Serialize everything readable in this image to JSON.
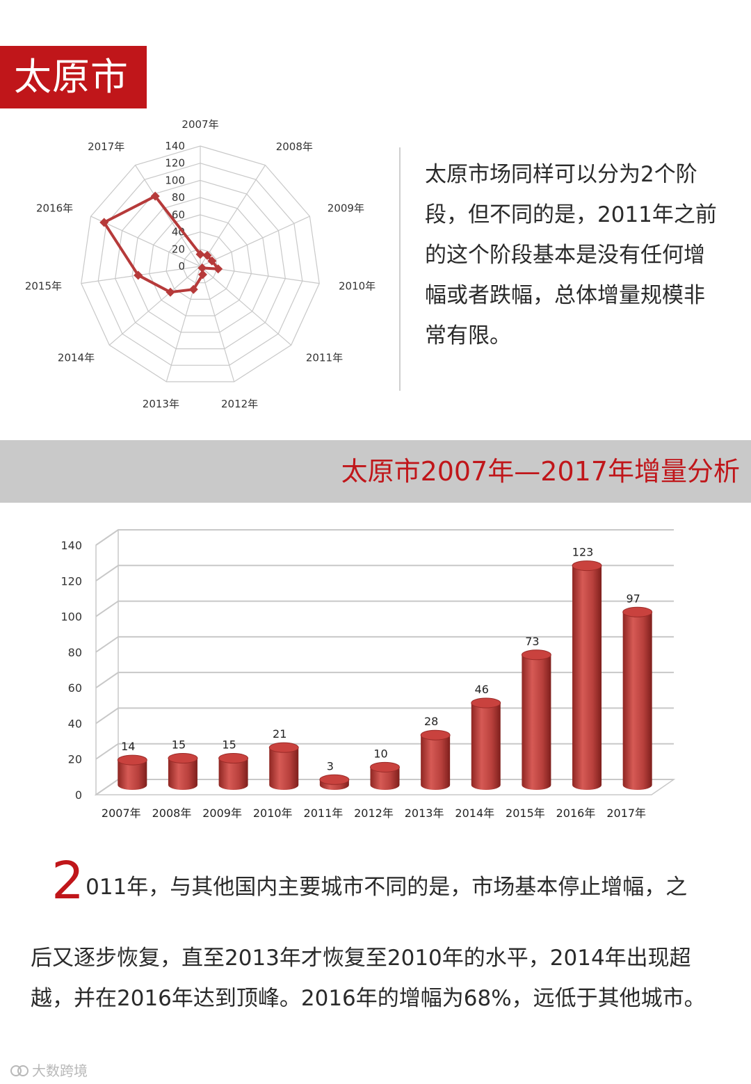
{
  "header": {
    "city_badge": "太原市"
  },
  "intro_text": "太原市场同样可以分为2个阶段，但不同的是，2011年之前的这个阶段基本是没有任何增幅或者跌幅，总体增量规模非常有限。",
  "section_band": {
    "title": "太原市2007年—2017年增量分析"
  },
  "paragraph": {
    "dropcap": "2",
    "line1": "011年，与其他国内主要城市不同的是，市场基本停止增幅，之",
    "rest": "后又逐步恢复，直至2013年才恢复至2010年的水平，2014年出现超越，并在2016年达到顶峰。2016年的增幅为68%，远低于其他城市。"
  },
  "watermark": {
    "text": "大数跨境",
    "icon": "logo-icon"
  },
  "colors": {
    "accent": "#c0161a",
    "bar": "#c0504d",
    "radar_line": "#b63a3a",
    "band": "#c9c9c9",
    "grid": "#c8c8c8"
  },
  "chart_data": [
    {
      "type": "radar",
      "title": "",
      "categories": [
        "2007年",
        "2008年",
        "2009年",
        "2010年",
        "2011年",
        "2012年",
        "2013年",
        "2014年",
        "2015年",
        "2016年",
        "2017年"
      ],
      "values": [
        14,
        15,
        15,
        21,
        3,
        10,
        28,
        46,
        73,
        123,
        97
      ],
      "range": [
        0,
        140
      ],
      "ticks": [
        0,
        20,
        40,
        60,
        80,
        100,
        120,
        140
      ],
      "tick_labels": [
        "0",
        "20",
        "40",
        "60",
        "80",
        "100",
        "120",
        "140"
      ],
      "grid": true
    },
    {
      "type": "bar",
      "style": "3d-cylinder",
      "title": "",
      "categories": [
        "2007年",
        "2008年",
        "2009年",
        "2010年",
        "2011年",
        "2012年",
        "2013年",
        "2014年",
        "2015年",
        "2016年",
        "2017年"
      ],
      "values": [
        14,
        15,
        15,
        21,
        3,
        10,
        28,
        46,
        73,
        123,
        97
      ],
      "data_labels": [
        "14",
        "15",
        "15",
        "21",
        "3",
        "10",
        "28",
        "46",
        "73",
        "123",
        "97"
      ],
      "ylim": [
        0,
        140
      ],
      "yticks": [
        0,
        20,
        40,
        60,
        80,
        100,
        120,
        140
      ],
      "ytick_labels": [
        "0",
        "20",
        "40",
        "60",
        "80",
        "100",
        "120",
        "140"
      ],
      "grid": true,
      "xlabel": "",
      "ylabel": ""
    }
  ]
}
